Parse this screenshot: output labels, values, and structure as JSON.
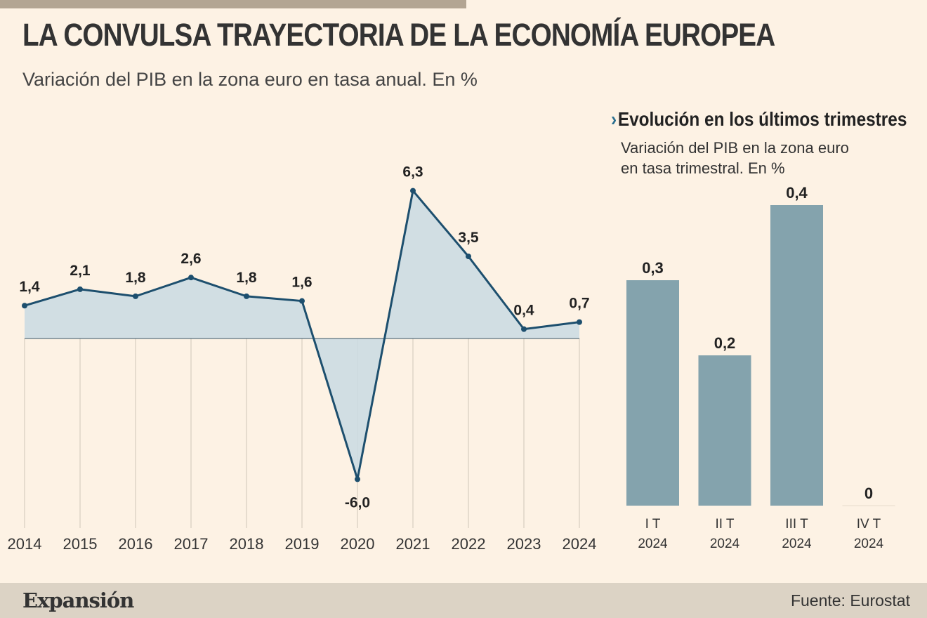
{
  "title": "LA CONVULSA TRAYECTORIA DE LA ECONOMÍA EUROPEA",
  "subtitle": "Variación del PIB en la zona euro en tasa anual. En %",
  "inset": {
    "chevron": "›",
    "title": "Evolución en los últimos trimestres",
    "subtitle_line1": "Variación del PIB en la zona euro",
    "subtitle_line2": "en tasa trimestral. En %"
  },
  "footer": {
    "logo": "Expansión",
    "source": "Fuente: Eurostat"
  },
  "colors": {
    "background": "#fdf2e4",
    "line": "#1d4f6e",
    "area_fill": "#c9dbe3",
    "bar": "#84a3ad",
    "accent": "#2b6f8f",
    "footer": "#dcd3c5"
  },
  "chart_data": [
    {
      "type": "area",
      "x": [
        "2014",
        "2015",
        "2016",
        "2017",
        "2018",
        "2019",
        "2020",
        "2021",
        "2022",
        "2023",
        "2024"
      ],
      "values": [
        1.4,
        2.1,
        1.8,
        2.6,
        1.8,
        1.6,
        -6.0,
        6.3,
        3.5,
        0.4,
        0.7
      ],
      "value_labels": [
        "1,4",
        "2,1",
        "1,8",
        "2,6",
        "1,8",
        "1,6",
        "-6,0",
        "6,3",
        "3,5",
        "0,4",
        "0,7"
      ],
      "ylim": [
        -6.0,
        6.3
      ],
      "grid": "vertical"
    },
    {
      "type": "bar",
      "categories": [
        [
          "I T",
          "2024"
        ],
        [
          "II T",
          "2024"
        ],
        [
          "III T",
          "2024"
        ],
        [
          "IV T",
          "2024"
        ]
      ],
      "values": [
        0.3,
        0.2,
        0.4,
        0
      ],
      "value_labels": [
        "0,3",
        "0,2",
        "0,4",
        "0"
      ],
      "ylim": [
        0,
        0.4
      ]
    }
  ]
}
